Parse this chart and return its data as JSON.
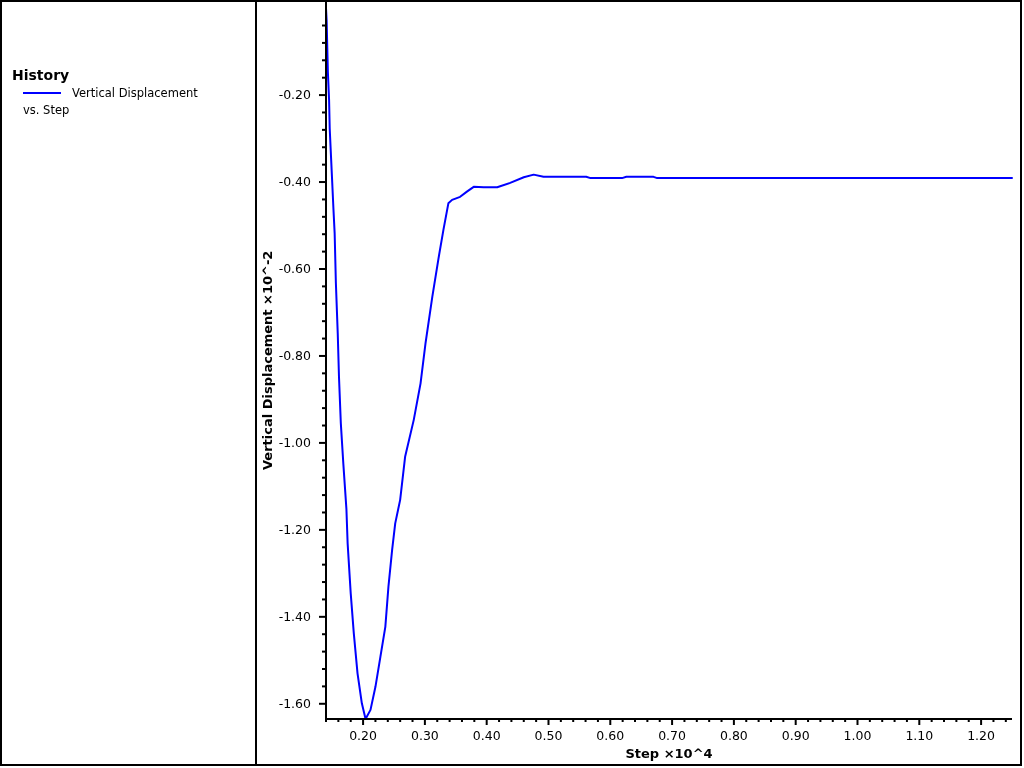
{
  "chart_data": {
    "type": "line",
    "xlabel": "Step ×10^4",
    "ylabel": "Vertical Displacement ×10^-2",
    "legend_title": "History",
    "legend": "left",
    "annotations": [
      "vs. Step"
    ],
    "xlim": [
      0.14,
      1.25
    ],
    "ylim": [
      -1.635,
      0.015
    ],
    "xticks": [
      {
        "value": 0.14,
        "label": null
      },
      {
        "value": 0.16,
        "label": null
      },
      {
        "value": 0.18,
        "label": null
      },
      {
        "value": 0.2,
        "label": "0.20"
      },
      {
        "value": 0.22,
        "label": null
      },
      {
        "value": 0.24,
        "label": null
      },
      {
        "value": 0.26,
        "label": null
      },
      {
        "value": 0.28,
        "label": null
      },
      {
        "value": 0.3,
        "label": "0.30"
      },
      {
        "value": 0.32,
        "label": null
      },
      {
        "value": 0.34,
        "label": null
      },
      {
        "value": 0.36,
        "label": null
      },
      {
        "value": 0.38,
        "label": null
      },
      {
        "value": 0.4,
        "label": "0.40"
      },
      {
        "value": 0.42,
        "label": null
      },
      {
        "value": 0.44,
        "label": null
      },
      {
        "value": 0.46,
        "label": null
      },
      {
        "value": 0.48,
        "label": null
      },
      {
        "value": 0.5,
        "label": "0.50"
      },
      {
        "value": 0.52,
        "label": null
      },
      {
        "value": 0.54,
        "label": null
      },
      {
        "value": 0.56,
        "label": null
      },
      {
        "value": 0.58,
        "label": null
      },
      {
        "value": 0.6,
        "label": "0.60"
      },
      {
        "value": 0.62,
        "label": null
      },
      {
        "value": 0.64,
        "label": null
      },
      {
        "value": 0.66,
        "label": null
      },
      {
        "value": 0.68,
        "label": null
      },
      {
        "value": 0.7,
        "label": "0.70"
      },
      {
        "value": 0.72,
        "label": null
      },
      {
        "value": 0.74,
        "label": null
      },
      {
        "value": 0.76,
        "label": null
      },
      {
        "value": 0.78,
        "label": null
      },
      {
        "value": 0.8,
        "label": "0.80"
      },
      {
        "value": 0.82,
        "label": null
      },
      {
        "value": 0.84,
        "label": null
      },
      {
        "value": 0.86,
        "label": null
      },
      {
        "value": 0.88,
        "label": null
      },
      {
        "value": 0.9,
        "label": "0.90"
      },
      {
        "value": 0.92,
        "label": null
      },
      {
        "value": 0.94,
        "label": null
      },
      {
        "value": 0.96,
        "label": null
      },
      {
        "value": 0.98,
        "label": null
      },
      {
        "value": 1.0,
        "label": "1.00"
      },
      {
        "value": 1.02,
        "label": null
      },
      {
        "value": 1.04,
        "label": null
      },
      {
        "value": 1.06,
        "label": null
      },
      {
        "value": 1.08,
        "label": null
      },
      {
        "value": 1.1,
        "label": "1.10"
      },
      {
        "value": 1.12,
        "label": null
      },
      {
        "value": 1.14,
        "label": null
      },
      {
        "value": 1.16,
        "label": null
      },
      {
        "value": 1.18,
        "label": null
      },
      {
        "value": 1.2,
        "label": "1.20"
      },
      {
        "value": 1.22,
        "label": null
      },
      {
        "value": 1.24,
        "label": null
      }
    ],
    "yticks": [
      {
        "value": -0.04,
        "label": null
      },
      {
        "value": -0.08,
        "label": null
      },
      {
        "value": -0.12,
        "label": null
      },
      {
        "value": -0.16,
        "label": null
      },
      {
        "value": -0.2,
        "label": "-0.20"
      },
      {
        "value": -0.24,
        "label": null
      },
      {
        "value": -0.28,
        "label": null
      },
      {
        "value": -0.32,
        "label": null
      },
      {
        "value": -0.36,
        "label": null
      },
      {
        "value": -0.4,
        "label": "-0.40"
      },
      {
        "value": -0.44,
        "label": null
      },
      {
        "value": -0.48,
        "label": null
      },
      {
        "value": -0.52,
        "label": null
      },
      {
        "value": -0.56,
        "label": null
      },
      {
        "value": -0.6,
        "label": "-0.60"
      },
      {
        "value": -0.64,
        "label": null
      },
      {
        "value": -0.68,
        "label": null
      },
      {
        "value": -0.72,
        "label": null
      },
      {
        "value": -0.76,
        "label": null
      },
      {
        "value": -0.8,
        "label": "-0.80"
      },
      {
        "value": -0.84,
        "label": null
      },
      {
        "value": -0.88,
        "label": null
      },
      {
        "value": -0.92,
        "label": null
      },
      {
        "value": -0.96,
        "label": null
      },
      {
        "value": -1.0,
        "label": "-1.00"
      },
      {
        "value": -1.04,
        "label": null
      },
      {
        "value": -1.08,
        "label": null
      },
      {
        "value": -1.12,
        "label": null
      },
      {
        "value": -1.16,
        "label": null
      },
      {
        "value": -1.2,
        "label": "-1.20"
      },
      {
        "value": -1.24,
        "label": null
      },
      {
        "value": -1.28,
        "label": null
      },
      {
        "value": -1.32,
        "label": null
      },
      {
        "value": -1.36,
        "label": null
      },
      {
        "value": -1.4,
        "label": "-1.40"
      },
      {
        "value": -1.44,
        "label": null
      },
      {
        "value": -1.48,
        "label": null
      },
      {
        "value": -1.52,
        "label": null
      },
      {
        "value": -1.56,
        "label": null
      },
      {
        "value": -1.6,
        "label": "-1.60"
      }
    ],
    "x": [
      0.14,
      0.141,
      0.143,
      0.145,
      0.146,
      0.148,
      0.15,
      0.152,
      0.154,
      0.156,
      0.159,
      0.161,
      0.164,
      0.168,
      0.173,
      0.175,
      0.18,
      0.185,
      0.191,
      0.198,
      0.204,
      0.212,
      0.22,
      0.228,
      0.236,
      0.241,
      0.247,
      0.252,
      0.26,
      0.268,
      0.282,
      0.293,
      0.301,
      0.312,
      0.322,
      0.33,
      0.338,
      0.344,
      0.357,
      0.368,
      0.379,
      0.395,
      0.417,
      0.438,
      0.46,
      0.476,
      0.492,
      0.535,
      0.561,
      0.568,
      0.619,
      0.626,
      0.67,
      0.676,
      1.25
    ],
    "series": [
      {
        "name": "Vertical Displacement",
        "color": "#0000ff",
        "values": [
          0.0,
          -0.028,
          -0.146,
          -0.212,
          -0.277,
          -0.338,
          -0.399,
          -0.461,
          -0.518,
          -0.633,
          -0.748,
          -0.848,
          -0.955,
          -1.047,
          -1.151,
          -1.231,
          -1.346,
          -1.438,
          -1.53,
          -1.599,
          -1.635,
          -1.614,
          -1.561,
          -1.492,
          -1.423,
          -1.331,
          -1.246,
          -1.185,
          -1.131,
          -1.032,
          -0.947,
          -0.863,
          -0.771,
          -0.664,
          -0.576,
          -0.51,
          -0.449,
          -0.441,
          -0.434,
          -0.422,
          -0.411,
          -0.412,
          -0.412,
          -0.402,
          -0.389,
          -0.383,
          -0.388,
          -0.388,
          -0.388,
          -0.391,
          -0.391,
          -0.388,
          -0.388,
          -0.391,
          -0.391
        ]
      }
    ]
  }
}
